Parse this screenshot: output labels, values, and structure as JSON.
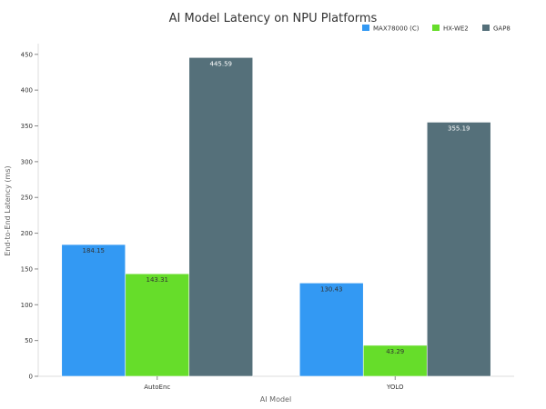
{
  "chart_data": {
    "type": "bar",
    "title": "AI Model Latency on NPU Platforms",
    "xlabel": "AI Model",
    "ylabel": "End-to-End Latency (ms)",
    "categories": [
      "AutoEnc",
      "YOLO"
    ],
    "series": [
      {
        "name": "MAX78000 (C)",
        "color": "#3399f3",
        "values": [
          184.15,
          130.43
        ]
      },
      {
        "name": "HX-WE2",
        "color": "#66dd2a",
        "values": [
          143.31,
          43.29
        ]
      },
      {
        "name": "GAP8",
        "color": "#55707a",
        "values": [
          445.59,
          355.19
        ]
      }
    ],
    "ylim": [
      0,
      465
    ],
    "yticks": [
      0,
      50,
      100,
      150,
      200,
      250,
      300,
      350,
      400,
      450
    ],
    "grid": false,
    "legend_position": "top-right"
  }
}
